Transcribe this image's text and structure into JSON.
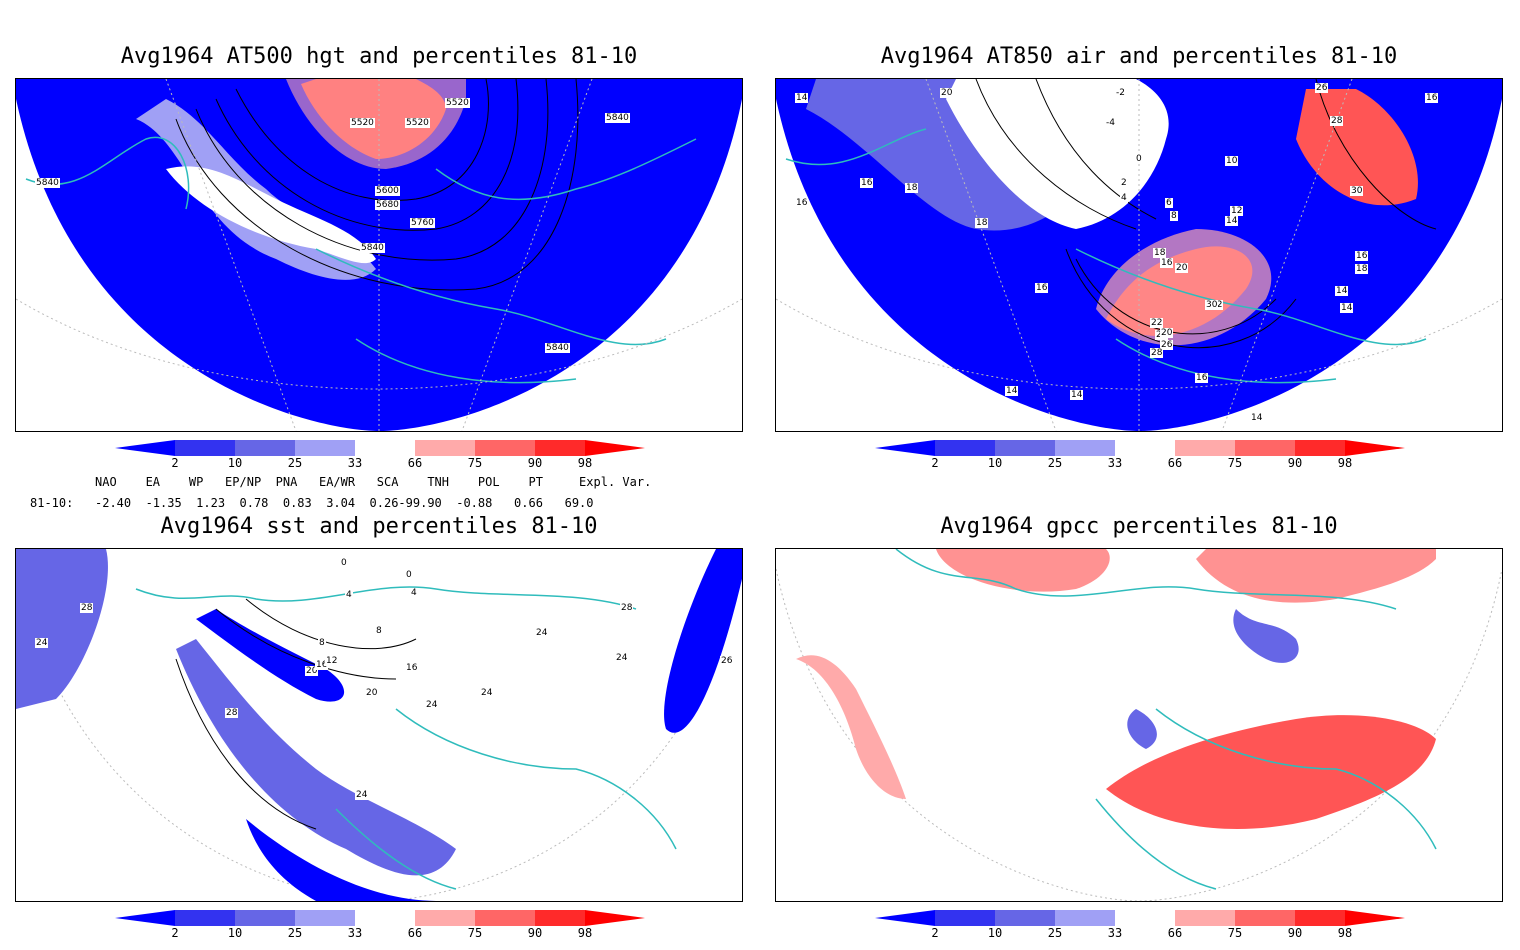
{
  "panels": [
    {
      "title": "Avg1964 AT500 hgt and percentiles 81-10",
      "contour_labels": [
        "5520",
        "5520",
        "5520",
        "5600",
        "5680",
        "5760",
        "5840",
        "5840",
        "5840",
        "5840"
      ]
    },
    {
      "title": "Avg1964 AT850 air and percentiles 81-10",
      "contour_labels": [
        "14",
        "20",
        "-2",
        "-4",
        "0",
        "2",
        "4",
        "6",
        "8",
        "10",
        "12",
        "14",
        "16",
        "18",
        "18",
        "16",
        "16",
        "16",
        "14",
        "14",
        "14",
        "14",
        "16",
        "18",
        "18",
        "16",
        "20",
        "22",
        "24",
        "26",
        "28",
        "30",
        "26",
        "28",
        "30",
        "22",
        "20",
        "16",
        "14"
      ]
    },
    {
      "title": "Avg1964 sst and percentiles 81-10",
      "contour_labels": [
        "28",
        "24",
        "28",
        "20",
        "16",
        "12",
        "8",
        "8",
        "4",
        "4",
        "0",
        "0",
        "24",
        "24",
        "24",
        "28",
        "24",
        "26",
        "16",
        "20",
        "24"
      ]
    },
    {
      "title": "Avg1964 gpcc percentiles 81-10",
      "contour_labels": []
    }
  ],
  "colorbar": {
    "labels": [
      "2",
      "10",
      "25",
      "33",
      "66",
      "75",
      "90",
      "98"
    ],
    "colors": [
      "#0000ff",
      "#3333f0",
      "#6666e6",
      "#a0a0f5",
      "#ffffff",
      "#ffaaaa",
      "#ff6666",
      "#ff2a2a",
      "#ff0000"
    ]
  },
  "indices": {
    "header": "NAO    EA    WP   EP/NP  PNA   EA/WR   SCA    TNH    POL    PT     Expl. Var.",
    "row_label": "81-10:",
    "row_values": "-2.40  -1.35  1.23  0.78  0.83  3.04  0.26-99.90  -0.88   0.66   69.0"
  },
  "map_colors": {
    "land_outline": "#2fbcbc",
    "contour": "#000000",
    "grid": "#bbbbbb"
  }
}
